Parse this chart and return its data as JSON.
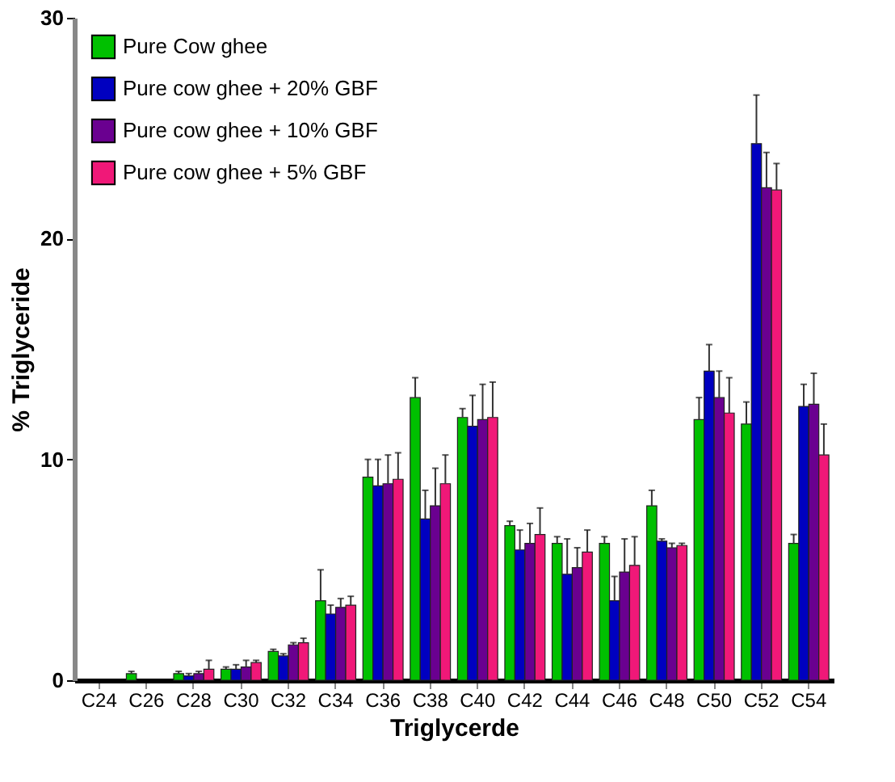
{
  "chart_data": {
    "type": "bar",
    "xlabel": "Triglycerde",
    "ylabel": "% Triglyceride",
    "categories": [
      "C24",
      "C26",
      "C28",
      "C30",
      "C32",
      "C34",
      "C36",
      "C38",
      "C40",
      "C42",
      "C44",
      "C46",
      "C48",
      "C50",
      "C52",
      "C54"
    ],
    "series": [
      {
        "name": "Pure Cow ghee",
        "color": "#00c000",
        "values": [
          null,
          0.3,
          0.3,
          0.5,
          1.3,
          3.6,
          9.2,
          12.8,
          11.9,
          7.0,
          6.2,
          6.2,
          7.9,
          11.8,
          11.6,
          6.2
        ],
        "errors": [
          null,
          0.1,
          0.1,
          0.1,
          0.1,
          1.4,
          0.8,
          0.9,
          0.4,
          0.2,
          0.3,
          0.3,
          0.7,
          1.0,
          1.0,
          0.4
        ]
      },
      {
        "name": "Pure cow ghee + 20% GBF",
        "color": "#0000c0",
        "values": [
          null,
          null,
          0.2,
          0.5,
          1.1,
          3.0,
          8.8,
          7.3,
          11.5,
          5.9,
          4.8,
          3.6,
          6.3,
          14.0,
          24.3,
          12.4
        ],
        "errors": [
          null,
          null,
          0.1,
          0.2,
          0.1,
          0.4,
          1.2,
          1.3,
          1.4,
          0.9,
          1.6,
          1.1,
          0.1,
          1.2,
          2.2,
          1.0
        ]
      },
      {
        "name": "Pure cow ghee + 10% GBF",
        "color": "#6a0090",
        "values": [
          null,
          null,
          0.3,
          0.6,
          1.6,
          3.3,
          8.9,
          7.9,
          11.8,
          6.2,
          5.1,
          4.9,
          6.0,
          12.8,
          22.3,
          12.5
        ],
        "errors": [
          null,
          null,
          0.1,
          0.3,
          0.1,
          0.4,
          1.3,
          1.7,
          1.6,
          0.9,
          0.9,
          1.5,
          0.2,
          1.2,
          1.6,
          1.4
        ]
      },
      {
        "name": "Pure cow ghee + 5% GBF",
        "color": "#f01878",
        "values": [
          null,
          null,
          0.5,
          0.8,
          1.7,
          3.4,
          9.1,
          8.9,
          11.9,
          6.6,
          5.8,
          5.2,
          6.1,
          12.1,
          22.2,
          10.2
        ],
        "errors": [
          null,
          null,
          0.4,
          0.1,
          0.2,
          0.4,
          1.2,
          1.3,
          1.6,
          1.2,
          1.0,
          1.3,
          0.1,
          1.6,
          1.2,
          1.4
        ]
      }
    ],
    "ylim": [
      0,
      30
    ],
    "yticks": [
      0,
      10,
      20,
      30
    ],
    "grid": false,
    "legend": "top left"
  }
}
